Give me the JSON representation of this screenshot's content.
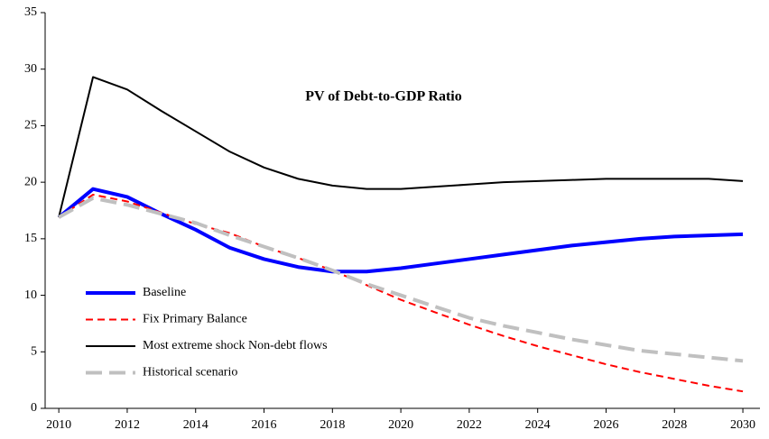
{
  "chart_data": {
    "type": "line",
    "title": "PV of Debt-to-GDP  Ratio",
    "x": [
      2010,
      2011,
      2012,
      2013,
      2014,
      2015,
      2016,
      2017,
      2018,
      2019,
      2020,
      2021,
      2022,
      2023,
      2024,
      2025,
      2026,
      2027,
      2028,
      2029,
      2030
    ],
    "series": [
      {
        "name": "Baseline",
        "color": "#0000ff",
        "width": 4,
        "dash": false,
        "values": [
          16.9,
          19.4,
          18.7,
          17.2,
          15.8,
          14.2,
          13.2,
          12.5,
          12.1,
          12.1,
          12.4,
          12.8,
          13.2,
          13.6,
          14.0,
          14.4,
          14.7,
          15.0,
          15.2,
          15.3,
          15.4
        ]
      },
      {
        "name": "Fix Primary Balance",
        "color": "#ff0000",
        "width": 2,
        "dash": true,
        "values": [
          16.9,
          18.9,
          18.3,
          17.3,
          16.3,
          15.5,
          14.3,
          13.3,
          12.2,
          10.9,
          9.6,
          8.5,
          7.4,
          6.4,
          5.5,
          4.7,
          3.9,
          3.2,
          2.6,
          2.0,
          1.5
        ]
      },
      {
        "name": "Most extreme shock Non-debt flows",
        "color": "#000000",
        "width": 2,
        "dash": false,
        "values": [
          16.9,
          29.3,
          28.2,
          26.3,
          24.5,
          22.7,
          21.3,
          20.3,
          19.7,
          19.4,
          19.4,
          19.6,
          19.8,
          20.0,
          20.1,
          20.2,
          20.3,
          20.3,
          20.3,
          20.3,
          20.1
        ]
      },
      {
        "name": "Historical scenario",
        "color": "#c0c0c0",
        "width": 4,
        "dash": true,
        "values": [
          16.9,
          18.6,
          18.0,
          17.2,
          16.4,
          15.3,
          14.3,
          13.3,
          12.2,
          11.0,
          10.0,
          9.0,
          8.0,
          7.3,
          6.7,
          6.1,
          5.6,
          5.1,
          4.8,
          4.5,
          4.2
        ]
      }
    ],
    "xlim": [
      2009.6,
      2030.5
    ],
    "xticks": [
      2010,
      2012,
      2014,
      2016,
      2018,
      2020,
      2022,
      2024,
      2026,
      2028,
      2030
    ],
    "ylim": [
      0,
      35
    ],
    "yticks": [
      0,
      5,
      10,
      15,
      20,
      25,
      30,
      35
    ],
    "legend": "lower-left"
  }
}
